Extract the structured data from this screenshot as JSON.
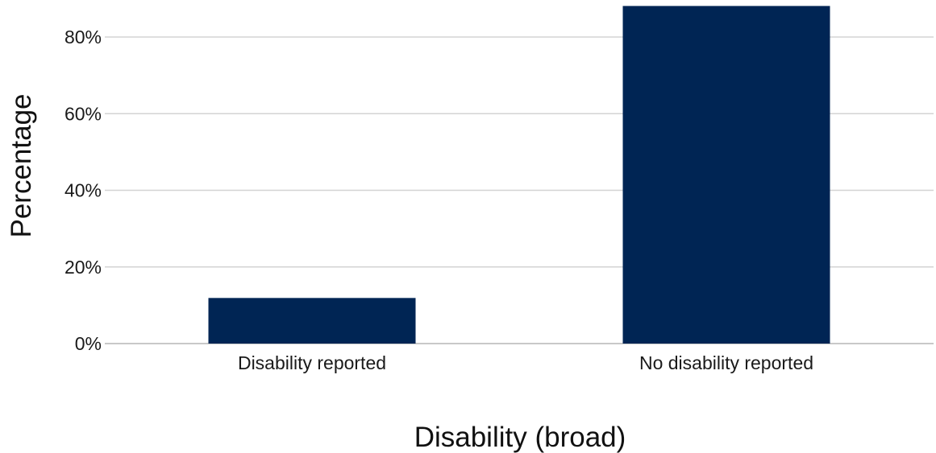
{
  "chart_data": {
    "type": "bar",
    "categories": [
      "Disability reported",
      "No disability reported"
    ],
    "values": [
      11.9,
      88.1
    ],
    "value_unit": "%",
    "xlabel": "Disability (broad)",
    "ylabel": "Percentage",
    "ylim": [
      0,
      88
    ],
    "yticks": [
      0,
      20,
      40,
      60,
      80
    ],
    "ytick_labels": [
      "0%",
      "20%",
      "40%",
      "60%",
      "80%"
    ],
    "grid": "horizontal",
    "legend": "none",
    "colors": {
      "bar": "#002554",
      "grid": "#d3d3d3"
    }
  }
}
